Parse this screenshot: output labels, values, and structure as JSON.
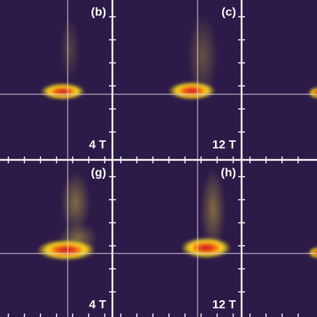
{
  "panels": [
    {
      "label": "(b)",
      "field": "4 T"
    },
    {
      "label": "(c)",
      "field": "12 T"
    },
    {
      "label": "(g)",
      "field": "4 T"
    },
    {
      "label": "(h)",
      "field": "12 T"
    }
  ]
}
